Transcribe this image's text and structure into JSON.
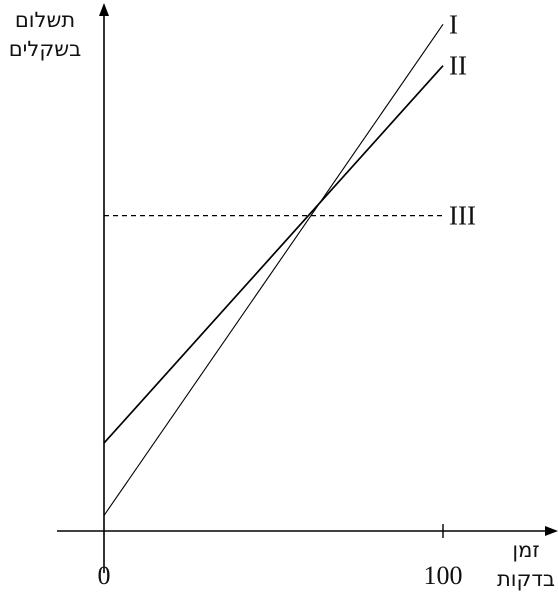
{
  "chart_data": {
    "type": "line",
    "title": "",
    "ylabel_lines": [
      "תשלום",
      "בשקלים"
    ],
    "xlabel_lines": [
      "זמן",
      "בדקות"
    ],
    "x_ticks": [
      {
        "value": 0,
        "label": "0"
      },
      {
        "value": 100,
        "label": "100"
      }
    ],
    "xlim": [
      0,
      100
    ],
    "ylim": [
      0,
      100
    ],
    "grid": false,
    "legend": "none",
    "series": [
      {
        "name": "I",
        "style": "thin",
        "x": [
          0,
          100
        ],
        "y": [
          3,
          98
        ]
      },
      {
        "name": "II",
        "style": "medium",
        "x": [
          0,
          100
        ],
        "y": [
          17,
          90
        ]
      },
      {
        "name": "III",
        "style": "dashed",
        "x": [
          0,
          100
        ],
        "y": [
          61,
          61
        ]
      }
    ]
  }
}
